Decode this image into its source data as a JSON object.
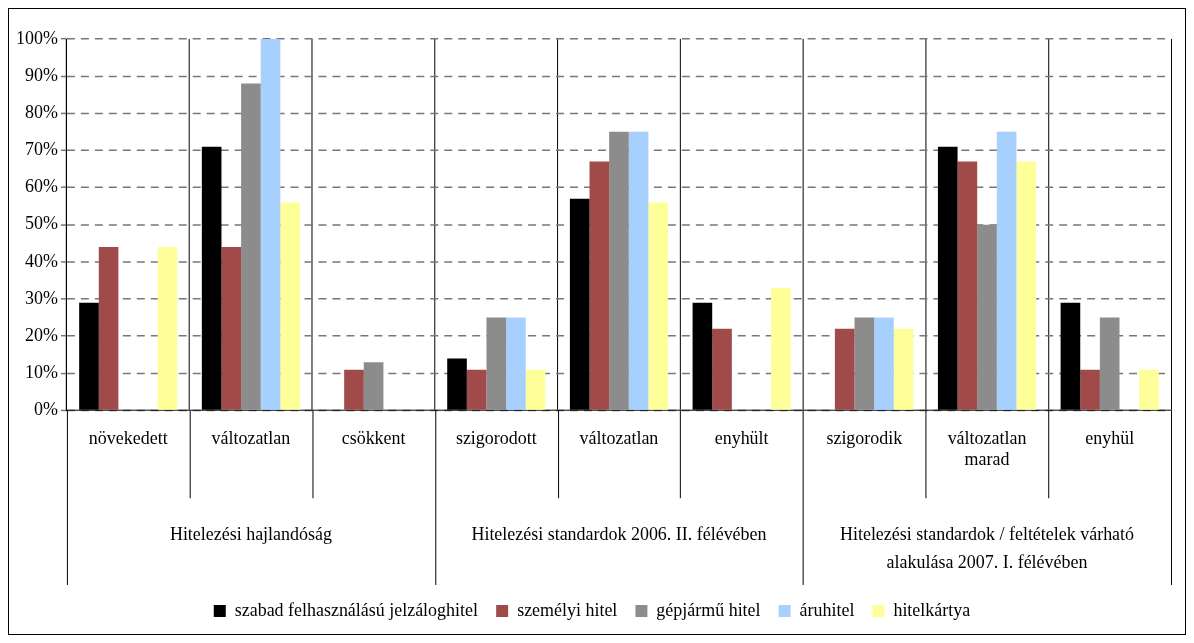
{
  "chart_data": {
    "type": "bar",
    "categories": [
      "növekedett",
      "változatlan",
      "csökkent",
      "szigorodott",
      "változatlan",
      "enyhült",
      "szigorodik",
      "változatlan marad",
      "enyhül"
    ],
    "series": [
      {
        "name": "szabad felhasználású jelzáloghitel",
        "color": "#000000",
        "values": [
          29,
          71,
          null,
          14,
          57,
          29,
          null,
          71,
          29
        ]
      },
      {
        "name": "személyi hitel",
        "color": "#a04a4a",
        "values": [
          44,
          44,
          11,
          11,
          67,
          22,
          22,
          67,
          11
        ]
      },
      {
        "name": "gépjármű hitel",
        "color": "#8c8c8c",
        "values": [
          null,
          88,
          13,
          25,
          75,
          null,
          25,
          50,
          25
        ]
      },
      {
        "name": "áruhitel",
        "color": "#a8d0ff",
        "values": [
          null,
          100,
          null,
          25,
          75,
          null,
          25,
          75,
          null
        ]
      },
      {
        "name": "hitelkártya",
        "color": "#ffff99",
        "values": [
          44,
          56,
          null,
          11,
          56,
          33,
          22,
          67,
          11
        ]
      }
    ],
    "annotations": [
      "Hitelezési hajlandóság",
      "Hitelezési standardok 2006. II. félévében",
      "Hitelezési standardok / feltételek várható alakulása 2007. I. félévében"
    ],
    "ylim": [
      0,
      100
    ],
    "yticks": [
      {
        "value": 0,
        "label": "0%"
      },
      {
        "value": 10,
        "label": "10%"
      },
      {
        "value": 20,
        "label": "20%"
      },
      {
        "value": 30,
        "label": "30%"
      },
      {
        "value": 40,
        "label": "40%"
      },
      {
        "value": 50,
        "label": "50%"
      },
      {
        "value": 60,
        "label": "60%"
      },
      {
        "value": 70,
        "label": "70%"
      },
      {
        "value": 80,
        "label": "80%"
      },
      {
        "value": 90,
        "label": "90%"
      },
      {
        "value": 100,
        "label": "100%"
      }
    ],
    "grid": "y",
    "legend": "bottom"
  }
}
